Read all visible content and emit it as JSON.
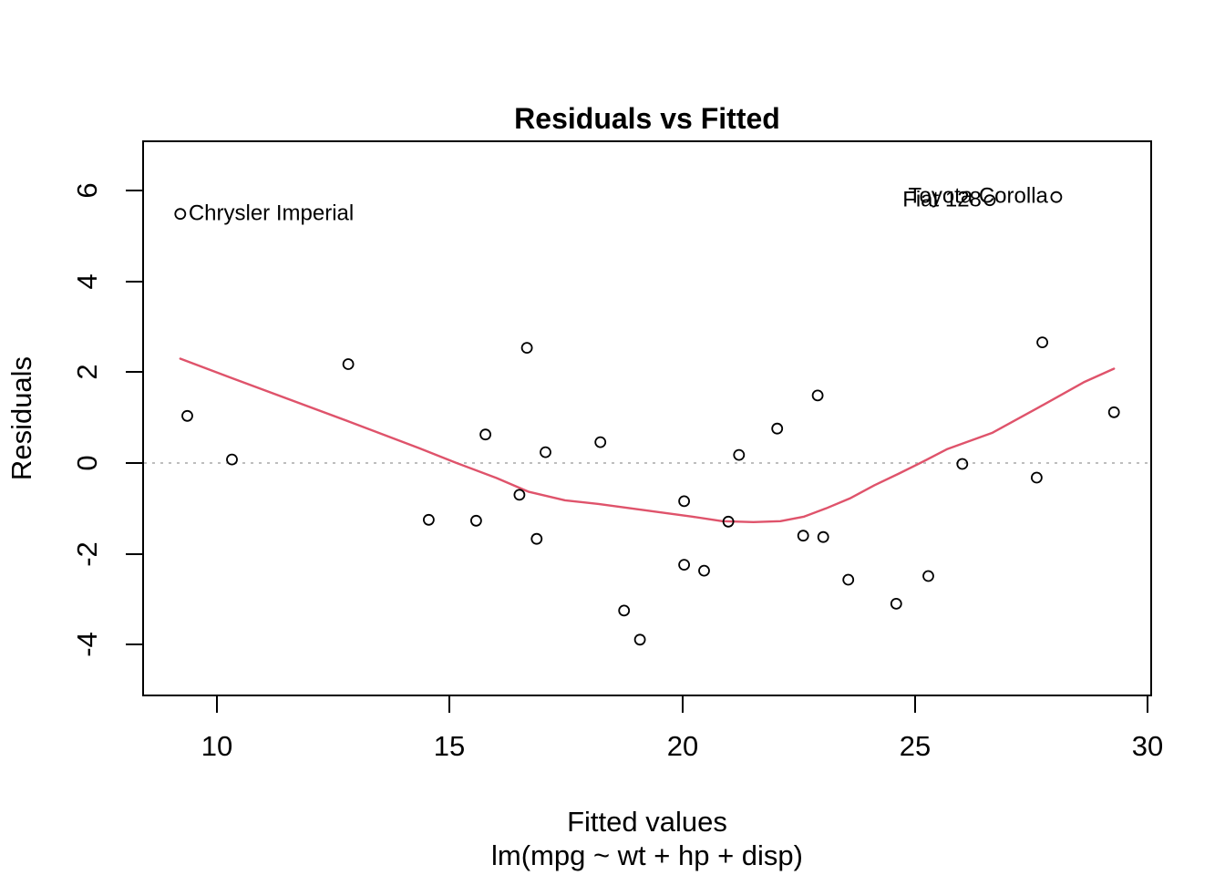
{
  "figure": {
    "title": "Residuals vs Fitted",
    "x_axis_label": "Fitted values",
    "x_axis_sublabel": "lm(mpg ~ wt + hp + disp)",
    "y_axis_label": "Residuals"
  },
  "colors": {
    "axis": "#000000",
    "points": "#000000",
    "smoother": "#DF536B",
    "zero_line": "#BEBEBE"
  },
  "chart_data": {
    "type": "scatter",
    "title": "Residuals vs Fitted",
    "xlabel": "Fitted values",
    "xlabel_model": "lm(mpg ~ wt + hp + disp)",
    "ylabel": "Residuals",
    "x_ticks": [
      10,
      15,
      20,
      25,
      30
    ],
    "y_ticks": [
      -4,
      -2,
      0,
      2,
      4,
      6
    ],
    "xlim": [
      8.41,
      30.08
    ],
    "ylim": [
      -5.12,
      7.09
    ],
    "grid": false,
    "legend": false,
    "zero_reference_line": 0,
    "points": [
      [
        23.57,
        -2.57
      ],
      [
        22.6,
        -1.6
      ],
      [
        25.29,
        -2.49
      ],
      [
        21.22,
        0.18
      ],
      [
        18.24,
        0.46
      ],
      [
        20.47,
        -2.37
      ],
      [
        15.57,
        -1.27
      ],
      [
        22.91,
        1.49
      ],
      [
        22.04,
        0.76
      ],
      [
        20.04,
        -0.84
      ],
      [
        20.04,
        -2.24
      ],
      [
        15.77,
        0.63
      ],
      [
        17.06,
        0.24
      ],
      [
        16.87,
        -1.67
      ],
      [
        10.32,
        0.08
      ],
      [
        9.36,
        1.04
      ],
      [
        9.21,
        5.49
      ],
      [
        26.61,
        5.79
      ],
      [
        29.28,
        1.12
      ],
      [
        28.04,
        5.86
      ],
      [
        24.6,
        -3.1
      ],
      [
        18.75,
        -3.25
      ],
      [
        19.09,
        -3.89
      ],
      [
        14.55,
        -1.25
      ],
      [
        16.66,
        2.54
      ],
      [
        27.62,
        -0.32
      ],
      [
        26.02,
        -0.02
      ],
      [
        27.74,
        2.66
      ],
      [
        16.5,
        -0.7
      ],
      [
        20.99,
        -1.29
      ],
      [
        12.82,
        2.18
      ],
      [
        23.03,
        -1.63
      ]
    ],
    "labeled_points": [
      {
        "text": "Chrysler Imperial",
        "x": 9.21,
        "y": 5.49,
        "side": "right"
      },
      {
        "text": "Fiat 128",
        "x": 26.61,
        "y": 5.79,
        "side": "left"
      },
      {
        "text": "Toyota Corolla",
        "x": 28.04,
        "y": 5.86,
        "side": "left"
      }
    ],
    "smoother": [
      [
        9.21,
        2.3
      ],
      [
        10.32,
        1.87
      ],
      [
        12.82,
        0.92
      ],
      [
        14.34,
        0.33
      ],
      [
        15.13,
        0.01
      ],
      [
        16.01,
        -0.33
      ],
      [
        16.69,
        -0.63
      ],
      [
        17.48,
        -0.82
      ],
      [
        18.2,
        -0.9
      ],
      [
        20.21,
        -1.18
      ],
      [
        20.86,
        -1.28
      ],
      [
        21.53,
        -1.3
      ],
      [
        22.11,
        -1.28
      ],
      [
        22.62,
        -1.18
      ],
      [
        23.09,
        -1.0
      ],
      [
        23.6,
        -0.78
      ],
      [
        24.13,
        -0.49
      ],
      [
        24.66,
        -0.23
      ],
      [
        25.17,
        0.03
      ],
      [
        25.7,
        0.31
      ],
      [
        26.67,
        0.67
      ],
      [
        27.65,
        1.22
      ],
      [
        28.63,
        1.78
      ],
      [
        29.28,
        2.08
      ]
    ]
  }
}
